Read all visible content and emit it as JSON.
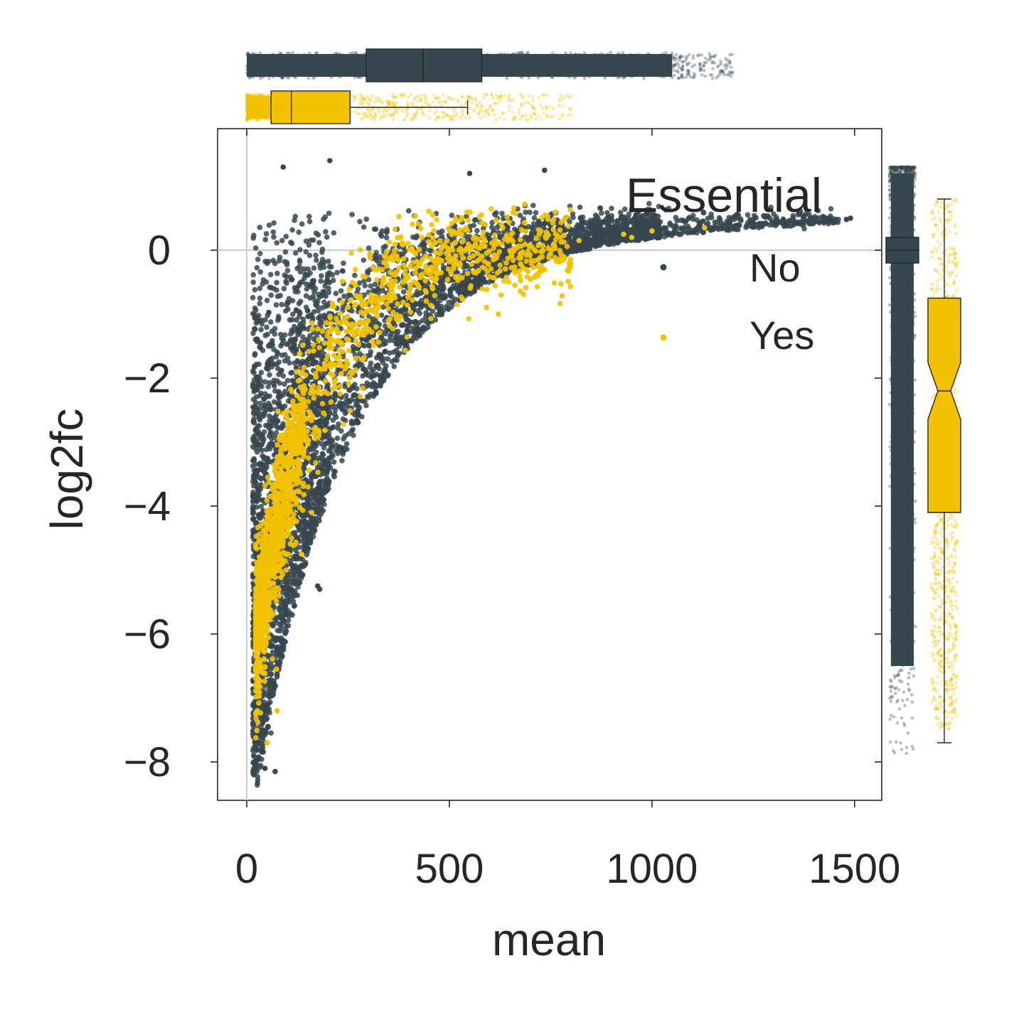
{
  "chart_data": {
    "type": "scatter",
    "xlabel": "mean",
    "ylabel": "log2fc",
    "xlim": [
      -72,
      1567
    ],
    "ylim": [
      -8.6,
      1.9
    ],
    "xticks": [
      0,
      500,
      1000,
      1500
    ],
    "yticks": [
      0,
      -2,
      -4,
      -6,
      -8
    ],
    "x_tick_labels": [
      "0",
      "500",
      "1000",
      "1500"
    ],
    "y_tick_labels": [
      "0",
      "−2",
      "−4",
      "−6",
      "−8"
    ],
    "reference_lines": {
      "x": 0,
      "y": 0
    },
    "grid": false,
    "legend": {
      "title": "Essential",
      "placement": "top-right",
      "entries": [
        "No",
        "Yes"
      ]
    },
    "series": [
      {
        "name": "No",
        "color": "#37474F",
        "trend": "dense band: near x≈20-80 log2fc spans −8.1 to 1.3; upper edge ≈0.8 across x; lower edge rises from −8 at x≈50 to ≈0.3 at x≈1450",
        "notable_points": [
          [
            90,
            1.3
          ],
          [
            205,
            1.4
          ],
          [
            550,
            1.2
          ],
          [
            735,
            1.25
          ],
          [
            1490,
            0.5
          ],
          [
            1480,
            0.48
          ],
          [
            175,
            -5.25
          ],
          [
            180,
            -5.3
          ],
          [
            70,
            -8.15
          ],
          [
            45,
            -8.1
          ],
          [
            30,
            -7.7
          ]
        ],
        "marginal_x_box": {
          "whisker_low": 0,
          "q1": 295,
          "median": 435,
          "q3": 580,
          "outliers_max": 1490
        },
        "marginal_y_box": {
          "q1": -0.2,
          "median": 0.0,
          "q3": 0.2,
          "min": -8.1,
          "max": 1.4
        }
      },
      {
        "name": "Yes",
        "color": "#F2C200",
        "trend": "concentrated at low mean: x≈20-100 log2fc −7.6 to −2, rising toward 0.3 for x≈300-800",
        "notable_points": [
          [
            930,
            0.25
          ],
          [
            950,
            0.2
          ],
          [
            1000,
            0.3
          ],
          [
            1130,
            0.35
          ],
          [
            820,
            0.15
          ],
          [
            135,
            -4.75
          ],
          [
            160,
            -4.1
          ],
          [
            75,
            -7.2
          ],
          [
            50,
            -7.7
          ]
        ],
        "marginal_x_box": {
          "whisker_low": 0,
          "q1": 60,
          "median": 110,
          "q3": 255,
          "whisker_high": 545,
          "outliers_max": 1130
        },
        "marginal_y_box": {
          "q1": -4.1,
          "median": -2.2,
          "q3": -0.75,
          "whisker_low": -7.7,
          "whisker_high": 0.8
        }
      }
    ]
  }
}
